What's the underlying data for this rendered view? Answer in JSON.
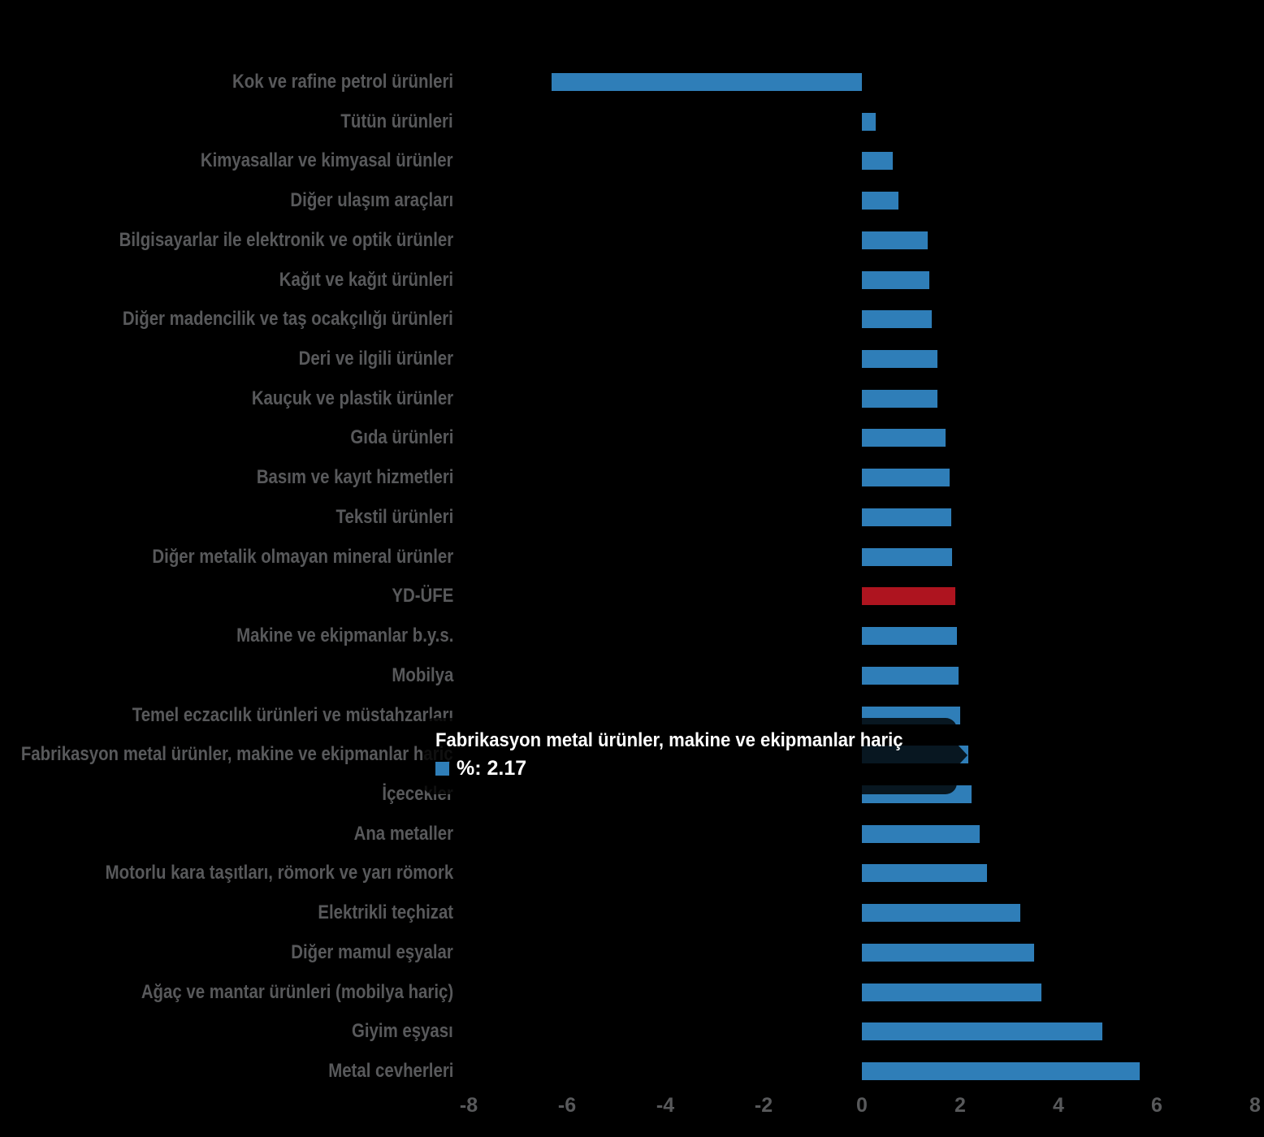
{
  "chart_data": {
    "type": "bar",
    "orientation": "horizontal",
    "title": "",
    "xlabel": "",
    "ylabel": "",
    "unit": "%",
    "xlim": [
      -8,
      8
    ],
    "x_ticks": [
      -8,
      -6,
      -4,
      -2,
      0,
      2,
      4,
      6,
      8
    ],
    "grid": false,
    "background_color": "#000000",
    "bar_color": "#2f7eb8",
    "highlight_color": "#ae141f",
    "highlight_category": "YD-ÜFE",
    "label_color": "#58595b",
    "categories": [
      "Kok ve rafine petrol ürünleri",
      "Tütün ürünleri",
      "Kimyasallar ve kimyasal ürünler",
      "Diğer ulaşım araçları",
      "Bilgisayarlar ile elektronik ve optik ürünler",
      "Kağıt ve kağıt ürünleri",
      "Diğer madencilik ve taş ocakçılığı ürünleri",
      "Deri ve ilgili ürünler",
      "Kauçuk ve plastik ürünler",
      "Gıda ürünleri",
      "Basım ve kayıt hizmetleri",
      "Tekstil ürünleri",
      "Diğer metalik olmayan mineral ürünler",
      "YD-ÜFE",
      "Makine ve ekipmanlar b.y.s.",
      "Mobilya",
      "Temel eczacılık ürünleri ve müstahzarları",
      "Fabrikasyon metal ürünler, makine ve ekipmanlar hariç",
      "İçecekler",
      "Ana metaller",
      "Motorlu kara taşıtları, römork ve yarı römork",
      "Elektrikli teçhizat",
      "Diğer mamul eşyalar",
      "Ağaç ve mantar ürünleri (mobilya hariç)",
      "Giyim eşyası",
      "Metal cevherleri"
    ],
    "values": [
      -6.31,
      0.28,
      0.62,
      0.74,
      1.34,
      1.37,
      1.42,
      1.53,
      1.54,
      1.7,
      1.79,
      1.82,
      1.83,
      1.9,
      1.94,
      1.97,
      2.0,
      2.17,
      2.23,
      2.39,
      2.55,
      3.22,
      3.51,
      3.66,
      4.9,
      5.66
    ]
  },
  "tooltip": {
    "title": "Fabrikasyon metal ürünler, makine ve ekipmanlar hariç",
    "value_label": "%: 2.17",
    "marker_color": "#2f7eb8"
  }
}
